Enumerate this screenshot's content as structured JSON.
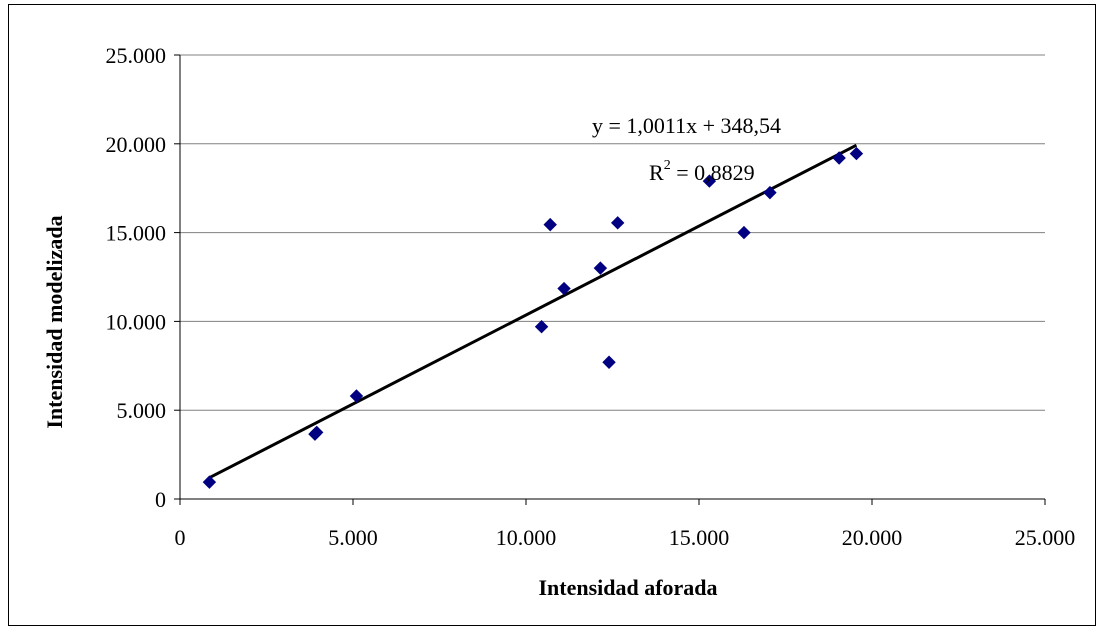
{
  "colors": {
    "marker": "#000080",
    "trendline": "#000000",
    "gridline": "#808080",
    "title_fragment": "#2a3bd0"
  },
  "chart_data": {
    "type": "scatter",
    "xlabel": "Intensidad aforada",
    "ylabel": "Intensidad modelizada",
    "xlim": [
      0,
      25000
    ],
    "ylim": [
      0,
      25000
    ],
    "x_ticks": [
      0,
      5000,
      10000,
      15000,
      20000,
      25000
    ],
    "x_tick_labels": [
      "0",
      "5.000",
      "10.000",
      "15.000",
      "20.000",
      "25.000"
    ],
    "y_ticks": [
      0,
      5000,
      10000,
      15000,
      20000,
      25000
    ],
    "y_tick_labels": [
      "0",
      "5.000",
      "10.000",
      "15.000",
      "20.000",
      "25.000"
    ],
    "grid": "horizontal",
    "marker": "diamond",
    "points": [
      {
        "x": 850,
        "y": 950
      },
      {
        "x": 3900,
        "y": 3650
      },
      {
        "x": 3950,
        "y": 3750
      },
      {
        "x": 5100,
        "y": 5800
      },
      {
        "x": 10450,
        "y": 9700
      },
      {
        "x": 10700,
        "y": 15450
      },
      {
        "x": 11100,
        "y": 11850
      },
      {
        "x": 12150,
        "y": 13000
      },
      {
        "x": 12400,
        "y": 7700
      },
      {
        "x": 12650,
        "y": 15550
      },
      {
        "x": 15300,
        "y": 17900
      },
      {
        "x": 16300,
        "y": 15000
      },
      {
        "x": 17050,
        "y": 17250
      },
      {
        "x": 19050,
        "y": 19200
      },
      {
        "x": 19550,
        "y": 19450
      }
    ],
    "trendline": {
      "slope": 1.0011,
      "intercept": 348.54,
      "x_range": [
        850,
        19550
      ],
      "equation": "y = 1,0011x + 348,54",
      "r2_label": "R",
      "r2_superscript": "2",
      "r2_value": " = 0,8829"
    }
  }
}
